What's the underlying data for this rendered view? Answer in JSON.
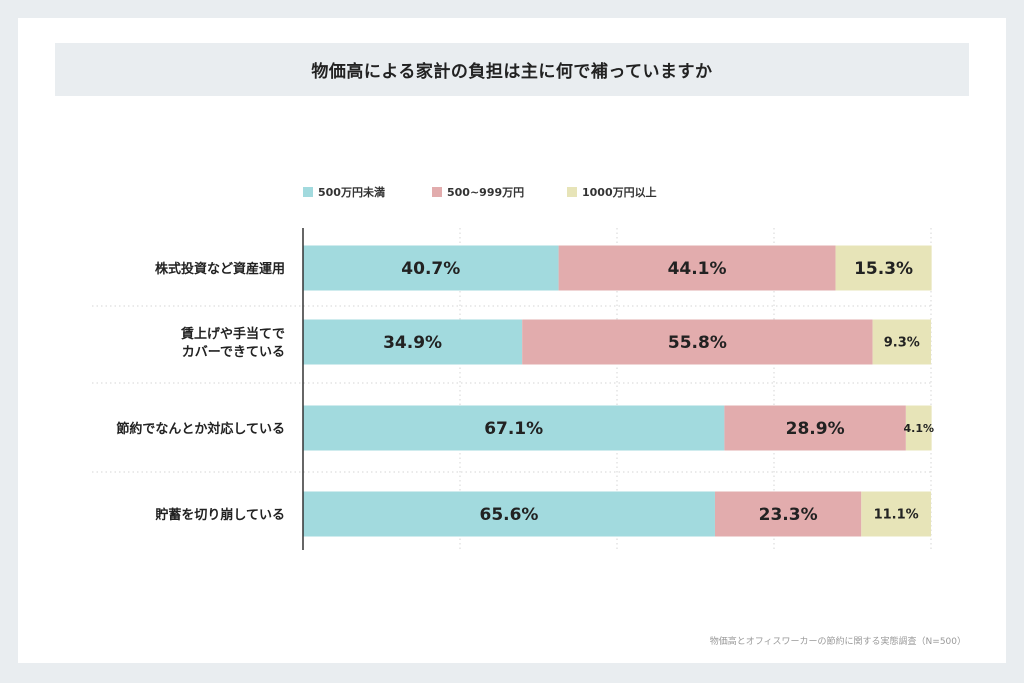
{
  "title": "物価高による家計の負担は主に何で補っていますか",
  "source": "物価高とオフィスワーカーの節約に関する実態調査（N=500）",
  "colors": {
    "page_bg": "#e9edf0",
    "title_bg": "#e9edf0",
    "series": [
      "#a2dade",
      "#e2acad",
      "#e7e4b8"
    ]
  },
  "chart_data": {
    "type": "bar",
    "orientation": "horizontal",
    "stacked": true,
    "normalized": true,
    "xlim": [
      0,
      100
    ],
    "grid": true,
    "legend_position": "top",
    "categories": [
      [
        "株式投資など資産運用"
      ],
      [
        "賃上げや手当てで",
        "カバーできている"
      ],
      [
        "節約でなんとか対応している"
      ],
      [
        "貯蓄を切り崩している"
      ]
    ],
    "series": [
      {
        "name": "500万円未満",
        "values": [
          40.7,
          34.9,
          67.1,
          65.6
        ],
        "labels": [
          "40.7%",
          "34.9%",
          "67.1%",
          "65.6%"
        ]
      },
      {
        "name": "500~999万円",
        "values": [
          44.1,
          55.8,
          28.9,
          23.3
        ],
        "labels": [
          "44.1%",
          "55.8%",
          "28.9%",
          "23.3%"
        ]
      },
      {
        "name": "1000万円以上",
        "values": [
          15.3,
          9.3,
          4.1,
          11.1
        ],
        "labels": [
          "15.3%",
          "9.3%",
          "4.1%",
          "11.1%"
        ]
      }
    ]
  }
}
